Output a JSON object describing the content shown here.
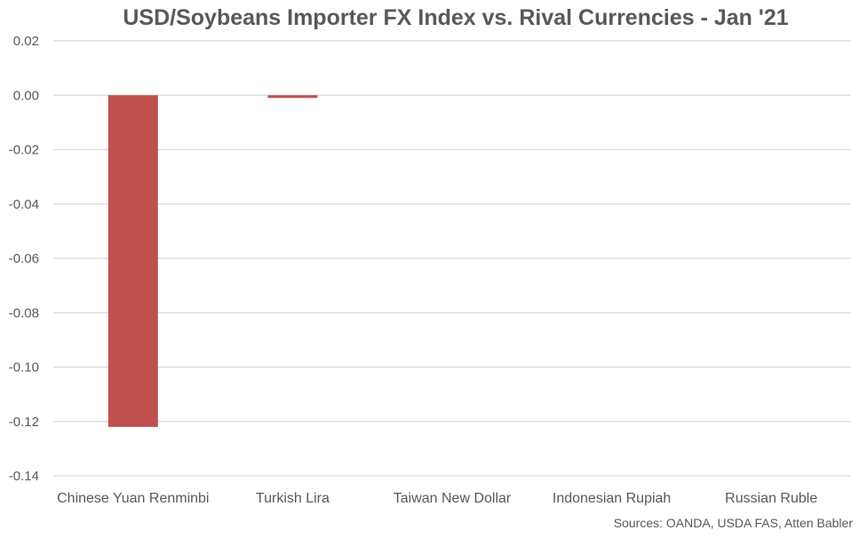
{
  "chart_data": {
    "type": "bar",
    "title": "USD/Soybeans Importer FX Index vs. Rival Currencies - Jan '21",
    "categories": [
      "Chinese Yuan Renminbi",
      "Turkish Lira",
      "Taiwan New Dollar",
      "Indonesian Rupiah",
      "Russian Ruble"
    ],
    "values": [
      -0.122,
      -0.001,
      0.0,
      0.0,
      0.0
    ],
    "ylim": [
      -0.14,
      0.02
    ],
    "yticks": [
      "0.02",
      "0.00",
      "-0.02",
      "-0.04",
      "-0.06",
      "-0.08",
      "-0.10",
      "-0.12",
      "-0.14"
    ],
    "grid": true,
    "bar_color": "#c0504d",
    "grid_color": "#d9d9d9",
    "xlabel": "",
    "ylabel": ""
  },
  "source": "Sources: OANDA, USDA FAS, Atten Babler"
}
